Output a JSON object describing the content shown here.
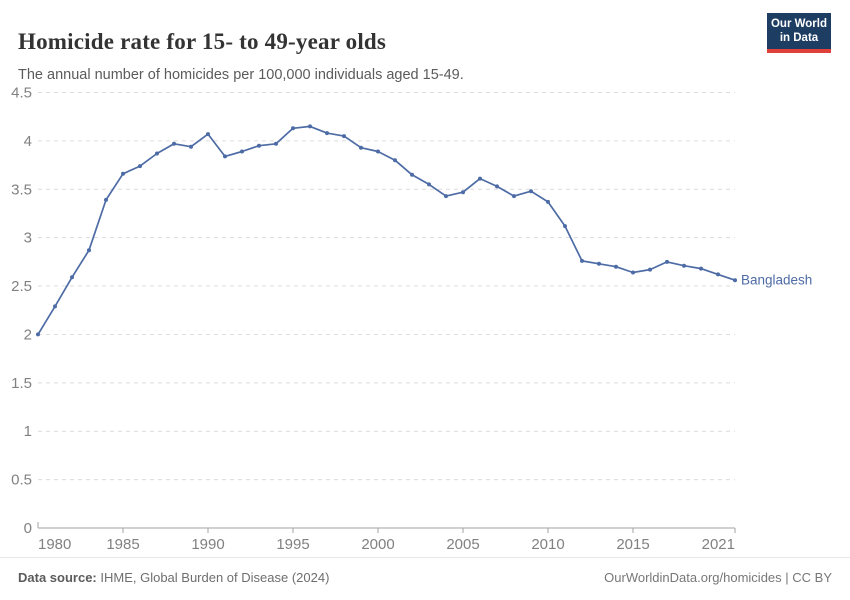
{
  "header": {
    "title": "Homicide rate for 15- to 49-year olds",
    "subtitle": "The annual number of homicides per 100,000 individuals aged 15-49.",
    "logo": {
      "line1": "Our World",
      "line2": "in Data"
    }
  },
  "chart_data": {
    "type": "line",
    "title": "Homicide rate for 15- to 49-year olds",
    "subtitle": "The annual number of homicides per 100,000 individuals aged 15-49.",
    "series": [
      {
        "name": "Bangladesh",
        "color": "#4d6ba5",
        "x": [
          1980,
          1981,
          1982,
          1983,
          1984,
          1985,
          1986,
          1987,
          1988,
          1989,
          1990,
          1991,
          1992,
          1993,
          1994,
          1995,
          1996,
          1997,
          1998,
          1999,
          2000,
          2001,
          2002,
          2003,
          2004,
          2005,
          2006,
          2007,
          2008,
          2009,
          2010,
          2011,
          2012,
          2013,
          2014,
          2015,
          2016,
          2017,
          2018,
          2019,
          2020,
          2021
        ],
        "values": [
          2.0,
          2.29,
          2.59,
          2.87,
          3.39,
          3.66,
          3.74,
          3.87,
          3.97,
          3.94,
          4.07,
          3.84,
          3.89,
          3.95,
          3.97,
          4.13,
          4.15,
          4.08,
          4.05,
          3.93,
          3.89,
          3.8,
          3.65,
          3.55,
          3.43,
          3.47,
          3.61,
          3.53,
          3.43,
          3.48,
          3.37,
          3.12,
          2.76,
          2.73,
          2.7,
          2.64,
          2.67,
          2.75,
          2.71,
          2.68,
          2.62,
          2.56
        ]
      }
    ],
    "end_label": "Bangladesh",
    "x_tick_labels": [
      "1980",
      "1985",
      "1990",
      "1995",
      "2000",
      "2005",
      "2010",
      "2015",
      "2021"
    ],
    "y_tick_labels": [
      "0",
      "0.5",
      "1",
      "1.5",
      "2",
      "2.5",
      "3",
      "3.5",
      "4",
      "4.5"
    ],
    "xlim": [
      1980,
      2021
    ],
    "ylim": [
      0,
      4.5
    ],
    "grid": "horizontal-dashed",
    "legend_position": "end-of-line"
  },
  "footer": {
    "source_label": "Data source:",
    "source_text": " IHME, Global Burden of Disease (2024)",
    "credit": "OurWorldinData.org/homicides | CC BY"
  },
  "colors": {
    "line": "#4d6ba5",
    "logo_bg": "#1d3d63",
    "logo_accent": "#e0403a",
    "gridline": "#dcdcdc",
    "axis": "#a3a3a3",
    "tick_label": "#818181",
    "title_text": "#333333",
    "subtitle_text": "#5b5b5b"
  }
}
